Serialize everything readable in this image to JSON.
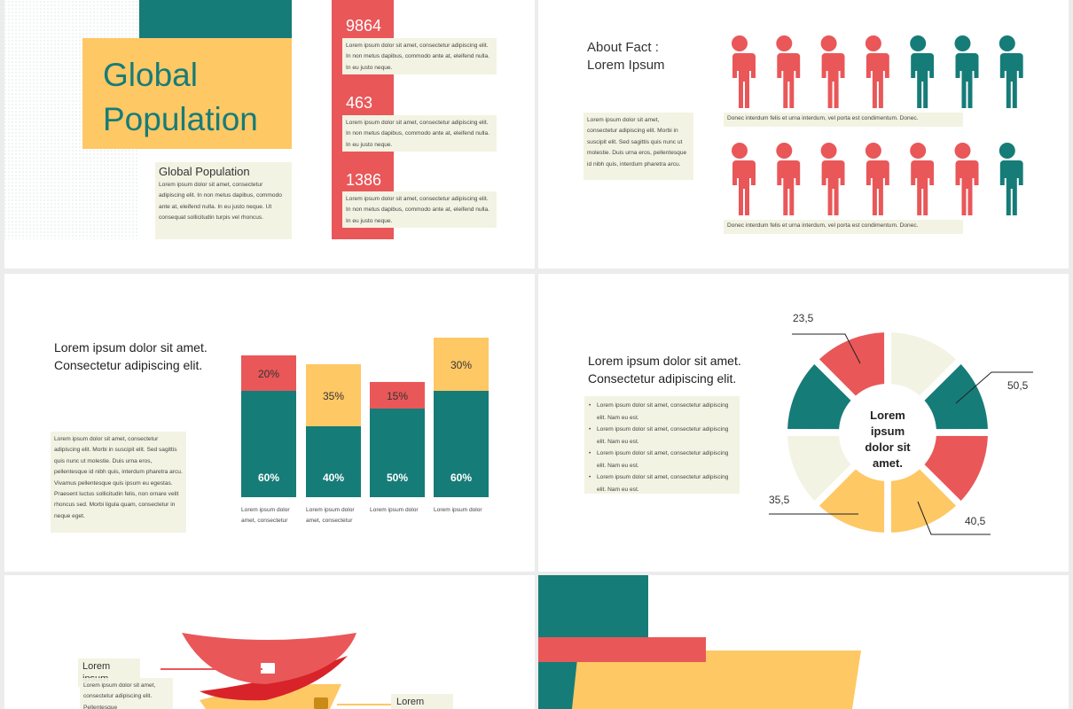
{
  "slide1": {
    "title_lines": [
      "Global",
      "Population"
    ],
    "subtitle": "Global Population",
    "body": "Lorem ipsum dolor sit amet, consectetur adipiscing elit. In non metus dapibus, commodo ante at, eleifend nulla. In eu justo neque. Ut consequat sollicitudin turpis vel rhoncus.",
    "facts": [
      {
        "number": 9864,
        "text": "Lorem ipsum dolor sit amet, consectetur adipiscing elit. In non metus dapibus, commodo ante at, eleifend nulla. In eu justo neque."
      },
      {
        "number": 463,
        "text": "Lorem ipsum dolor sit amet, consectetur adipiscing elit. In non metus dapibus, commodo ante at, eleifend nulla. In eu justo neque."
      },
      {
        "number": 1386,
        "text": "Lorem ipsum dolor sit amet, consectetur adipiscing elit. In non metus dapibus, commodo ante at, eleifend nulla. In eu justo neque."
      }
    ]
  },
  "slide2": {
    "title_lines": [
      "About Fact :",
      "Lorem Ipsum"
    ],
    "body": "Lorem ipsum dolor sit amet, consectetur adipiscing elit. Morbi in suscipit elit. Sed sagittis quis nunc ut molestie. Duis urna eros, pellentesque id nibh quis, interdum pharetra arcu.",
    "captions": [
      "Donec interdum felis et urna interdum, vel porta est condimentum. Donec.",
      "Donec interdum felis et urna interdum, vel porta est condimentum. Donec."
    ]
  },
  "slide3": {
    "title_lines": [
      "Lorem ipsum dolor sit amet.",
      "Consectetur adipiscing elit."
    ],
    "body": "Lorem ipsum dolor sit amet, consectetur adipiscing elit. Morbi in suscipit elit. Sed sagittis quis nunc ut molestie. Duis urna eros, pellentesque id nibh quis, interdum pharetra arcu. Vivamus pellentesque quis ipsum eu egestas. Praesent luctus sollicitudin felis, non ornare velit rhoncus sed. Morbi ligula quam, consectetur in neque eget.",
    "bars": [
      {
        "top": 20,
        "top_label": "20%",
        "bottom": 60,
        "bottom_label": "60%",
        "caption": "Lorem ipsum dolor amet, consectetur"
      },
      {
        "top": 35,
        "top_label": "35%",
        "bottom": 40,
        "bottom_label": "40%",
        "caption": "Lorem ipsum dolor amet, consectetur"
      },
      {
        "top": 15,
        "top_label": "15%",
        "bottom": 50,
        "bottom_label": "50%",
        "caption": "Lorem ipsum dolor"
      },
      {
        "top": 30,
        "top_label": "30%",
        "bottom": 60,
        "bottom_label": "60%",
        "caption": "Lorem ipsum dolor"
      }
    ]
  },
  "slide4": {
    "title_lines": [
      "Lorem ipsum dolor sit amet.",
      "Consectetur adipiscing elit."
    ],
    "bullets": [
      "Lorem ipsum dolor sit amet, consectetur adipiscing elit. Nam eu est.",
      "Lorem ipsum dolor sit amet, consectetur adipiscing elit. Nam eu est.",
      "Lorem ipsum dolor sit amet, consectetur adipiscing elit. Nam eu est.",
      "Lorem ipsum dolor sit amet, consectetur adipiscing elit. Nam eu est."
    ],
    "center": "Lorem ipsum dolor sit amet.",
    "labels": [
      {
        "value": 23.5,
        "label": "23,5"
      },
      {
        "value": 50.5,
        "label": "50,5"
      },
      {
        "value": 35.5,
        "label": "35,5"
      },
      {
        "value": 40.5,
        "label": "40,5"
      }
    ]
  },
  "slide5": {
    "label": "Lorem ipsum",
    "body": "Lorem ipsum dolor sit amet, consectetur adipiscing elit. Pellentesque",
    "label2": "Lorem"
  }
}
